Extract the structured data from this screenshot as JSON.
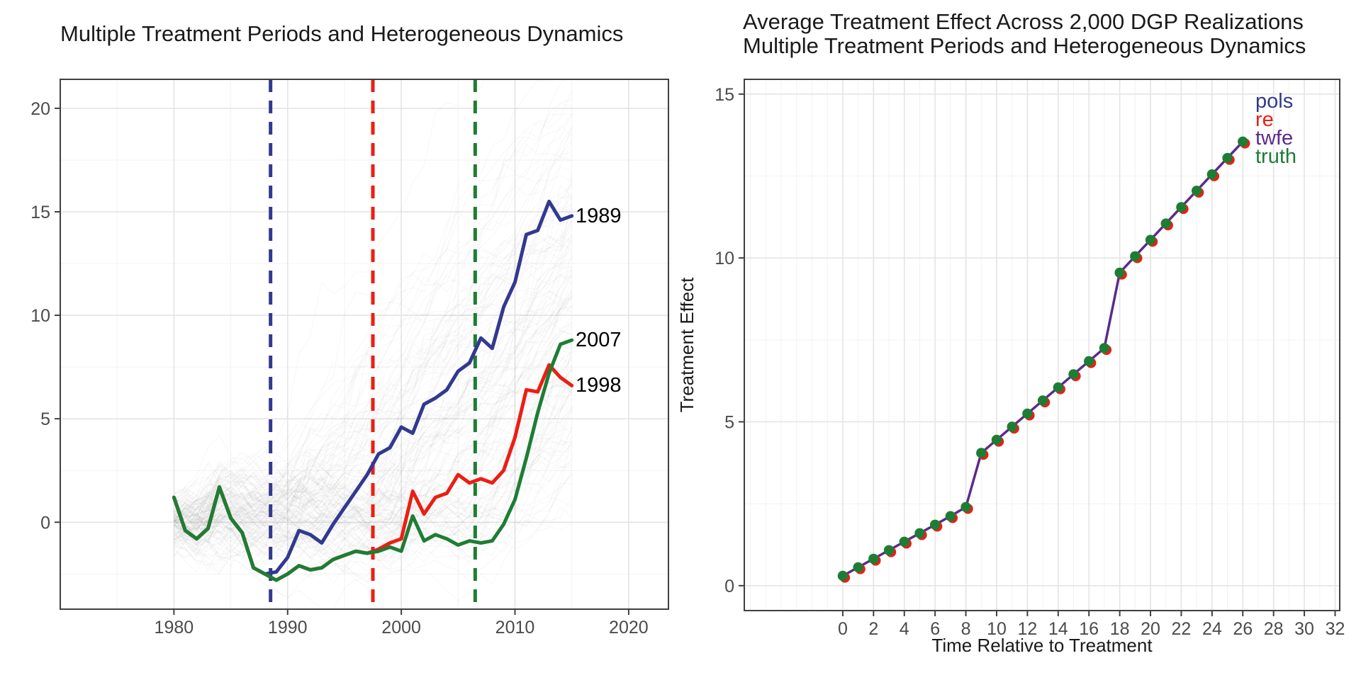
{
  "colors": {
    "navy": "#32398F",
    "red": "#EC1E13",
    "green": "#1E7D34",
    "purple": "#5B2B8B",
    "cloud": "#808080",
    "grid_major": "#E4E4E4",
    "grid_minor": "#F2F2F2",
    "axis": "#404040",
    "tick_text": "#4B4B4B",
    "title_text": "#1A1A1A"
  },
  "chart_data": [
    {
      "type": "line",
      "title": "Multiple Treatment Periods and Heterogeneous Dynamics",
      "xlabel": "",
      "ylabel": "",
      "xlim": [
        1970,
        2023.5
      ],
      "ylim": [
        -4.2,
        21.4
      ],
      "x_ticks": [
        1980,
        1990,
        2000,
        2010,
        2020
      ],
      "x_tick_labels": [
        "1980",
        "1990",
        "2000",
        "2010",
        "2020"
      ],
      "y_ticks": [
        0,
        5,
        10,
        15,
        20
      ],
      "y_tick_labels": [
        "0",
        "5",
        "10",
        "15",
        "20"
      ],
      "x_minor_step": 5,
      "y_minor_step": 2.5,
      "x": [
        1980,
        1981,
        1982,
        1983,
        1984,
        1985,
        1986,
        1987,
        1988,
        1989,
        1990,
        1991,
        1992,
        1993,
        1994,
        1995,
        1996,
        1997,
        1998,
        1999,
        2000,
        2001,
        2002,
        2003,
        2004,
        2005,
        2006,
        2007,
        2008,
        2009,
        2010,
        2011,
        2012,
        2013,
        2014,
        2015
      ],
      "series": [
        {
          "name": "cohort-1989",
          "label": "1989",
          "color_key": "navy",
          "values": [
            1.2,
            -0.4,
            -0.8,
            -0.3,
            1.7,
            0.2,
            -0.5,
            -2.2,
            -2.5,
            -2.4,
            -1.7,
            -0.4,
            -0.6,
            -1.0,
            -0.1,
            0.7,
            1.5,
            2.3,
            3.3,
            3.6,
            4.6,
            4.3,
            5.7,
            6.0,
            6.4,
            7.3,
            7.7,
            8.9,
            8.4,
            10.4,
            11.6,
            13.9,
            14.1,
            15.5,
            14.6,
            14.8
          ]
        },
        {
          "name": "cohort-1998",
          "label": "1998",
          "color_key": "red",
          "values": [
            1.2,
            -0.4,
            -0.8,
            -0.3,
            1.7,
            0.2,
            -0.5,
            -2.2,
            -2.5,
            -2.8,
            -2.5,
            -2.1,
            -2.3,
            -2.2,
            -1.8,
            -1.6,
            -1.4,
            -1.5,
            -1.3,
            -1.0,
            -0.8,
            1.5,
            0.4,
            1.2,
            1.4,
            2.3,
            1.9,
            2.1,
            1.9,
            2.5,
            4.1,
            6.4,
            6.3,
            7.6,
            7.0,
            6.6
          ]
        },
        {
          "name": "cohort-2007",
          "label": "2007",
          "color_key": "green",
          "values": [
            1.2,
            -0.4,
            -0.8,
            -0.3,
            1.7,
            0.2,
            -0.5,
            -2.2,
            -2.5,
            -2.8,
            -2.5,
            -2.1,
            -2.3,
            -2.2,
            -1.8,
            -1.6,
            -1.4,
            -1.5,
            -1.4,
            -1.2,
            -1.4,
            0.3,
            -0.9,
            -0.6,
            -0.8,
            -1.1,
            -0.9,
            -1.0,
            -0.9,
            -0.1,
            1.1,
            3.1,
            5.3,
            7.2,
            8.6,
            8.8
          ]
        }
      ],
      "treatment_vlines": [
        {
          "x": 1988.5,
          "color_key": "navy",
          "style": "dashed"
        },
        {
          "x": 1997.5,
          "color_key": "red",
          "style": "dashed"
        },
        {
          "x": 2006.5,
          "color_key": "green",
          "style": "dashed"
        }
      ],
      "background_realizations": {
        "count": 150,
        "seed": 11,
        "cohorts": [
          1989,
          1998,
          2007
        ],
        "color_key": "cloud",
        "opacity": 0.055,
        "width": 1.2
      },
      "grid": true,
      "legend_position": "none"
    },
    {
      "type": "line",
      "title_line1": "Average Treatment Effect Across 2,000 DGP Realizations",
      "title_line2": "Multiple Treatment Periods and Heterogeneous Dynamics",
      "xlabel": "Time Relative to Treatment",
      "ylabel": "Treatment Effect",
      "xlim": [
        -6.4,
        32.3
      ],
      "ylim": [
        -0.76,
        15.45
      ],
      "x_ticks": [
        0,
        2,
        4,
        6,
        8,
        10,
        12,
        14,
        16,
        18,
        20,
        22,
        24,
        26,
        28,
        30,
        32
      ],
      "x_tick_labels": [
        "0",
        "2",
        "4",
        "6",
        "8",
        "10",
        "12",
        "14",
        "16",
        "18",
        "20",
        "22",
        "24",
        "26",
        "28",
        "30",
        "32"
      ],
      "y_ticks": [
        0,
        5,
        10,
        15
      ],
      "y_tick_labels": [
        "0",
        "5",
        "10",
        "15"
      ],
      "x_minor_step": 1,
      "y_minor_step": 2.5,
      "x": [
        0,
        1,
        2,
        3,
        4,
        5,
        6,
        7,
        8,
        9,
        10,
        11,
        12,
        13,
        14,
        15,
        16,
        17,
        18,
        19,
        20,
        21,
        22,
        23,
        24,
        25,
        26
      ],
      "series": [
        {
          "name": "pols",
          "label": "pols",
          "color_key": "navy",
          "values": [
            0.3,
            0.56,
            0.82,
            1.08,
            1.34,
            1.6,
            1.86,
            2.12,
            2.4,
            4.05,
            4.45,
            4.85,
            5.25,
            5.65,
            6.05,
            6.45,
            6.85,
            7.25,
            9.55,
            10.05,
            10.55,
            11.05,
            11.55,
            12.05,
            12.55,
            13.05,
            13.55
          ]
        },
        {
          "name": "re",
          "label": "re",
          "color_key": "red",
          "values": [
            0.3,
            0.56,
            0.82,
            1.08,
            1.34,
            1.6,
            1.86,
            2.12,
            2.4,
            4.05,
            4.45,
            4.85,
            5.25,
            5.65,
            6.05,
            6.45,
            6.85,
            7.25,
            9.55,
            10.05,
            10.55,
            11.05,
            11.55,
            12.05,
            12.55,
            13.05,
            13.55
          ]
        },
        {
          "name": "twfe",
          "label": "twfe",
          "color_key": "purple",
          "values": [
            0.3,
            0.56,
            0.82,
            1.08,
            1.34,
            1.6,
            1.86,
            2.12,
            2.4,
            4.05,
            4.45,
            4.85,
            5.25,
            5.65,
            6.05,
            6.45,
            6.85,
            7.25,
            9.55,
            10.05,
            10.55,
            11.05,
            11.55,
            12.05,
            12.55,
            13.05,
            13.55
          ]
        },
        {
          "name": "truth",
          "label": "truth",
          "color_key": "green",
          "values": [
            0.3,
            0.56,
            0.82,
            1.08,
            1.34,
            1.6,
            1.86,
            2.12,
            2.4,
            4.05,
            4.45,
            4.85,
            5.25,
            5.65,
            6.05,
            6.45,
            6.85,
            7.25,
            9.55,
            10.05,
            10.55,
            11.05,
            11.55,
            12.05,
            12.55,
            13.05,
            13.55
          ]
        }
      ],
      "legend": [
        {
          "label": "pols",
          "color_key": "navy"
        },
        {
          "label": "re",
          "color_key": "red"
        },
        {
          "label": "twfe",
          "color_key": "purple"
        },
        {
          "label": "truth",
          "color_key": "green"
        }
      ],
      "note": "pols, re and twfe estimates visually overlap the truth line"
    }
  ]
}
